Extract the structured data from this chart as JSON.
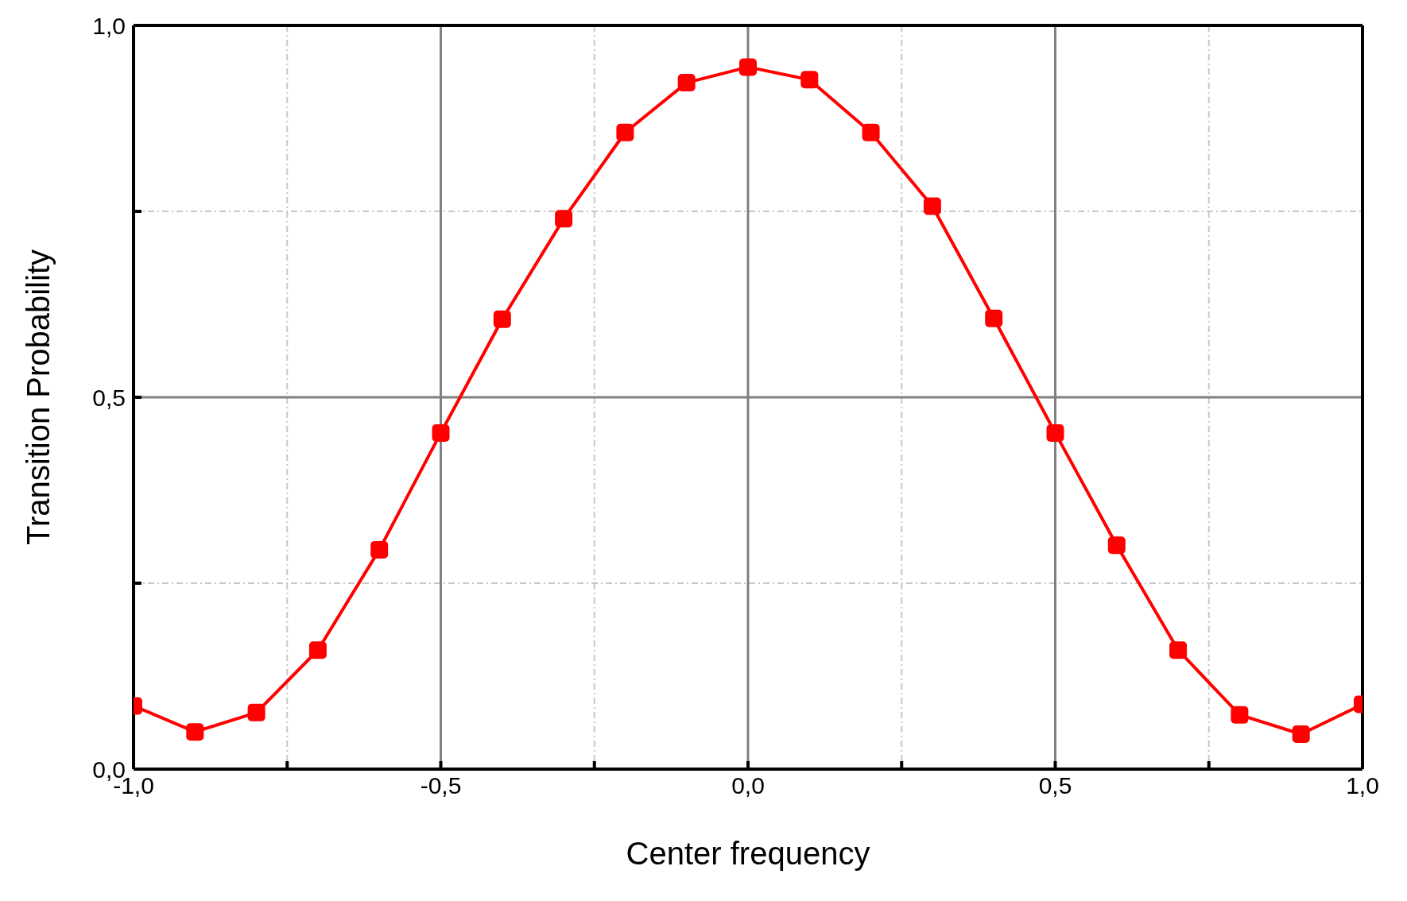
{
  "chart_data": {
    "type": "line",
    "xlabel": "Center frequency",
    "ylabel": "Transition Probability",
    "x": [
      -1.0,
      -0.9,
      -0.8,
      -0.7,
      -0.6,
      -0.5,
      -0.4,
      -0.3,
      -0.2,
      -0.1,
      0.0,
      0.1,
      0.2,
      0.3,
      0.4,
      0.5,
      0.6,
      0.7,
      0.8,
      0.9,
      1.0
    ],
    "series": [
      {
        "color": "#ff0000",
        "values": [
          0.085,
          0.05,
          0.076,
          0.16,
          0.295,
          0.452,
          0.605,
          0.74,
          0.856,
          0.923,
          0.944,
          0.927,
          0.856,
          0.757,
          0.606,
          0.452,
          0.301,
          0.16,
          0.073,
          0.047,
          0.087
        ]
      }
    ],
    "xlim": [
      -1,
      1
    ],
    "xticks": [
      {
        "value": -1,
        "label": "-1,0"
      },
      {
        "value": -0.75,
        "label": null
      },
      {
        "value": -0.5,
        "label": "-0,5"
      },
      {
        "value": -0.25,
        "label": null
      },
      {
        "value": 0,
        "label": "0,0"
      },
      {
        "value": 0.25,
        "label": null
      },
      {
        "value": 0.5,
        "label": "0,5"
      },
      {
        "value": 0.75,
        "label": null
      },
      {
        "value": 1,
        "label": "1,0"
      }
    ],
    "ylim": [
      0,
      1
    ],
    "yticks": [
      {
        "value": 0,
        "label": "0,0"
      },
      {
        "value": 0.25,
        "label": null
      },
      {
        "value": 0.5,
        "label": "0,5"
      },
      {
        "value": 0.75,
        "label": null
      },
      {
        "value": 1,
        "label": "1,0"
      }
    ],
    "grid": true,
    "marker": "square",
    "line_style": "solid"
  }
}
